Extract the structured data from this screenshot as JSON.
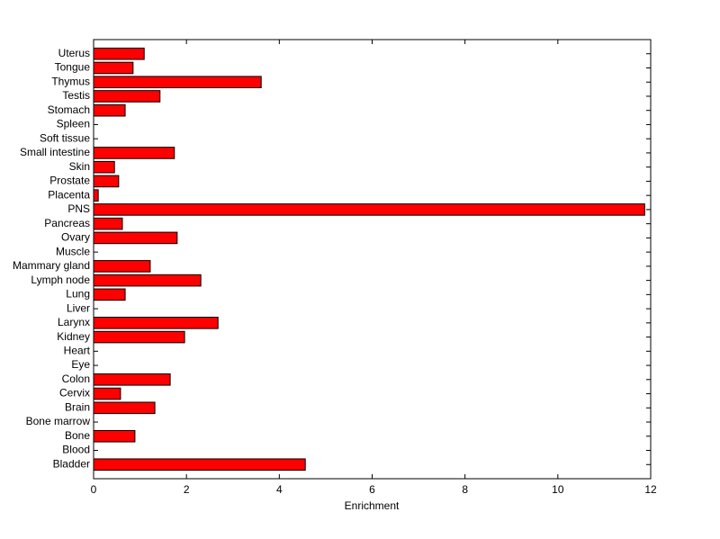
{
  "chart_data": {
    "type": "barh",
    "x_label": "Enrichment",
    "categories": [
      "Bladder",
      "Blood",
      "Bone",
      "Bone marrow",
      "Brain",
      "Cervix",
      "Colon",
      "Eye",
      "Heart",
      "Kidney",
      "Larynx",
      "Liver",
      "Lung",
      "Lymph node",
      "Mammary gland",
      "Muscle",
      "Ovary",
      "Pancreas",
      "PNS",
      "Placenta",
      "Prostate",
      "Skin",
      "Small intestine",
      "Soft tissue",
      "Spleen",
      "Stomach",
      "Testis",
      "Thymus",
      "Tongue",
      "Uterus"
    ],
    "values": [
      4.56,
      0,
      0.89,
      0,
      1.32,
      0.58,
      1.65,
      0,
      0,
      1.96,
      2.68,
      0,
      0.68,
      2.31,
      1.22,
      0,
      1.8,
      0.62,
      11.87,
      0.1,
      0.54,
      0.45,
      1.74,
      0,
      0,
      0.68,
      1.43,
      3.61,
      0.85,
      1.09
    ],
    "color": "#ff0000",
    "xlim": [
      0,
      12
    ],
    "xticks": [
      0,
      2,
      4,
      6,
      8,
      10,
      12
    ],
    "grid": false
  }
}
